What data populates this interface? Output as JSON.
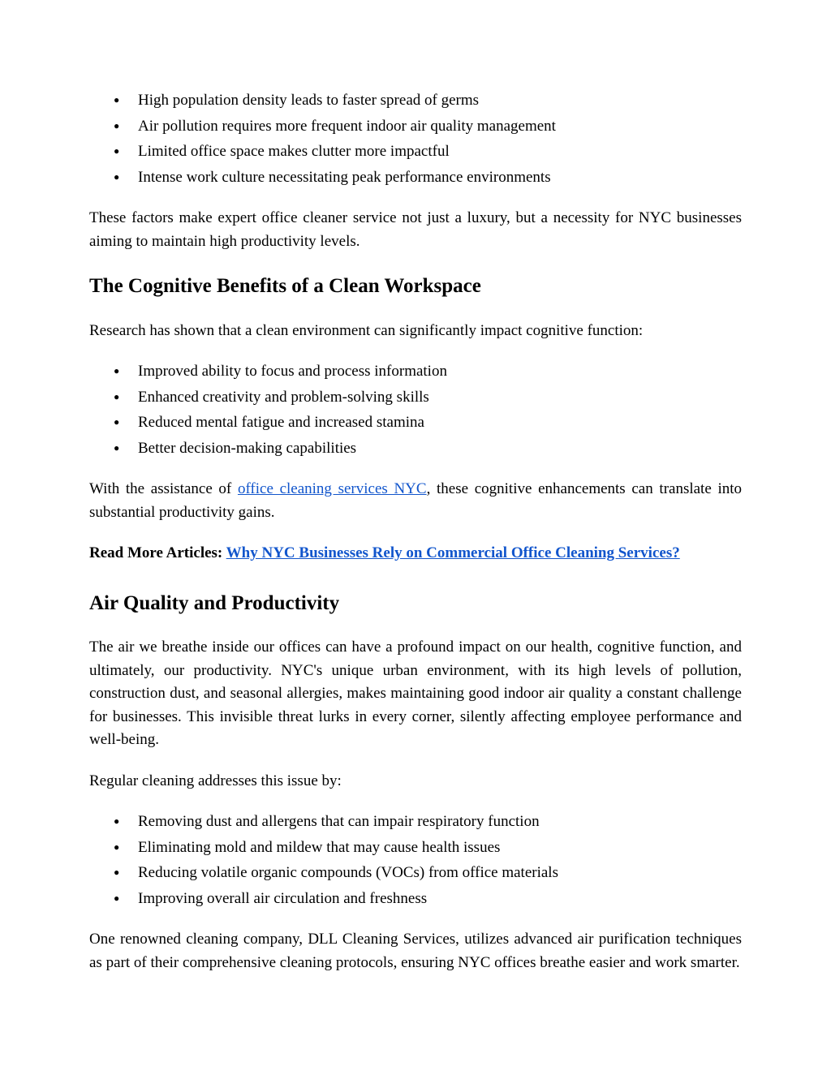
{
  "list1": {
    "items": [
      "High population density leads to faster spread of germs",
      "Air pollution requires more frequent indoor air quality management",
      "Limited office space makes clutter more impactful",
      "Intense work culture necessitating peak performance environments"
    ]
  },
  "para1": "These factors make expert office cleaner service not just a luxury, but a necessity for NYC businesses aiming to maintain high productivity levels.",
  "heading1": "The Cognitive Benefits of a Clean Workspace",
  "para2": "Research has shown that a clean environment can significantly impact cognitive function:",
  "list2": {
    "items": [
      "Improved ability to focus and process information",
      "Enhanced creativity and problem-solving skills",
      "Reduced mental fatigue and increased stamina",
      "Better decision-making capabilities"
    ]
  },
  "para3_pre": "With the assistance of ",
  "para3_link": "office cleaning services NYC",
  "para3_post": ", these cognitive enhancements can translate into substantial productivity gains.",
  "readmore_label": "Read More Articles: ",
  "readmore_link": "Why NYC Businesses Rely on Commercial Office Cleaning Services?",
  "heading2": "Air Quality and Productivity",
  "para4": "The air we breathe inside our offices can have a profound impact on our health, cognitive function, and ultimately, our productivity. NYC's unique urban environment, with its high levels of pollution, construction dust, and seasonal allergies, makes maintaining good indoor air quality a constant challenge for businesses. This invisible threat lurks in every corner, silently affecting employee performance and well-being.",
  "para5": "Regular cleaning addresses this issue by:",
  "list3": {
    "items": [
      "Removing dust and allergens that can impair respiratory function",
      "Eliminating mold and mildew that may cause health issues",
      "Reducing volatile organic compounds (VOCs) from office materials",
      "Improving overall air circulation and freshness"
    ]
  },
  "para6": "One renowned cleaning company, DLL Cleaning Services, utilizes advanced air purification techniques as part of their comprehensive cleaning protocols, ensuring NYC offices breathe easier and work smarter.",
  "colors": {
    "text": "#000000",
    "link": "#1155cc",
    "background": "#ffffff"
  },
  "typography": {
    "body_fontsize": 19,
    "heading_fontsize": 25,
    "font_family": "Georgia, serif"
  }
}
